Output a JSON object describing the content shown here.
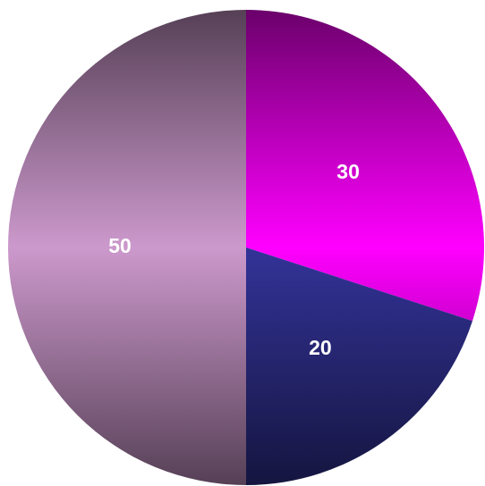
{
  "chart_data": {
    "type": "pie",
    "start_angle": "12 o'clock",
    "direction": "clockwise",
    "slices": [
      {
        "value": 30,
        "label": "30",
        "color": "#ff00ff"
      },
      {
        "value": 20,
        "label": "20",
        "color": "#333399"
      },
      {
        "value": 50,
        "label": "50",
        "color": "#cc99cc"
      }
    ]
  }
}
